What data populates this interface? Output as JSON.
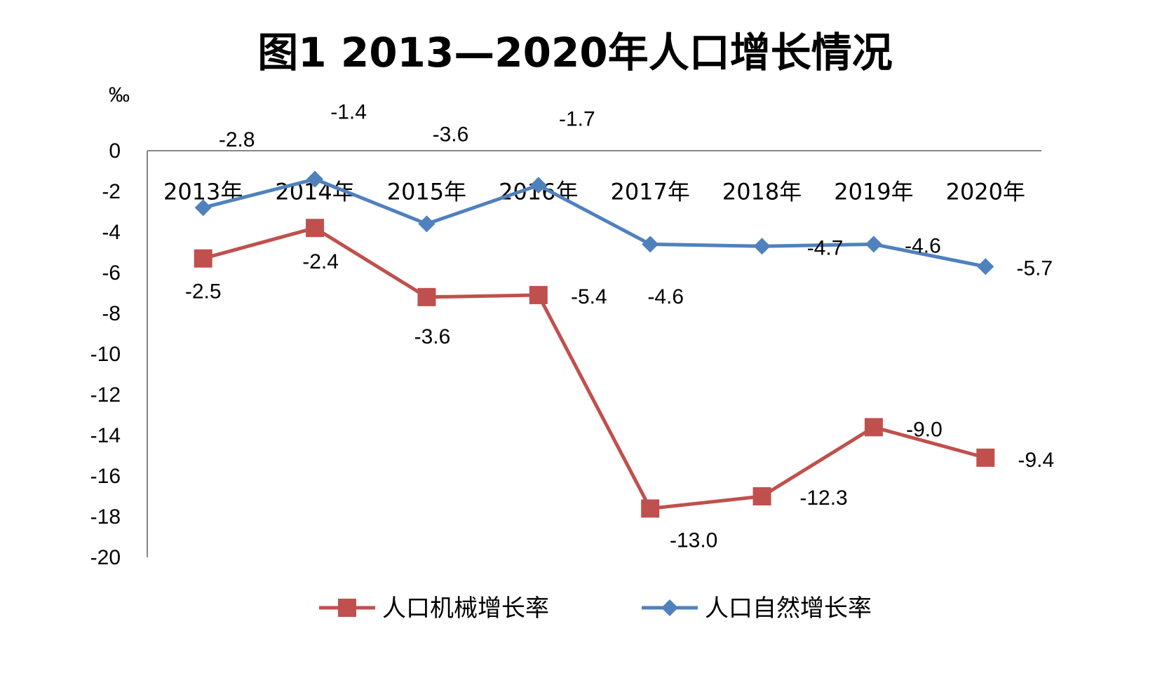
{
  "chart_data": {
    "type": "line",
    "title": "图1 2013—2020年人口增长情况",
    "unit": "‰",
    "categories": [
      "2013年",
      "2014年",
      "2015年",
      "2016年",
      "2017年",
      "2018年",
      "2019年",
      "2020年"
    ],
    "yticks": [
      "0",
      "-2",
      "-4",
      "-6",
      "-8",
      "-10",
      "-12",
      "-14",
      "-16",
      "-18",
      "-20"
    ],
    "ylim": [
      -20,
      0
    ],
    "grid": false,
    "legend_position": "bottom",
    "series": [
      {
        "name": "人口机械增长率",
        "color": "#c0504d",
        "marker": "square",
        "values": [
          -5.3,
          -3.8,
          -7.2,
          -7.1,
          -17.6,
          -17.0,
          -13.6,
          -15.1
        ],
        "data_labels": [
          "-2.5",
          "-2.4",
          "-3.6",
          "-5.4",
          "-13.0",
          "-12.3",
          "-9.0",
          "-9.4"
        ]
      },
      {
        "name": "人口自然增长率",
        "color": "#4f81bd",
        "marker": "diamond",
        "values": [
          -2.8,
          -1.4,
          -3.6,
          -1.7,
          -4.6,
          -4.7,
          -4.6,
          -5.7
        ],
        "data_labels": [
          "-2.8",
          "-1.4",
          "-3.6",
          "-1.7",
          "-4.6",
          "-4.7",
          "-4.6",
          "-5.7"
        ]
      }
    ]
  }
}
